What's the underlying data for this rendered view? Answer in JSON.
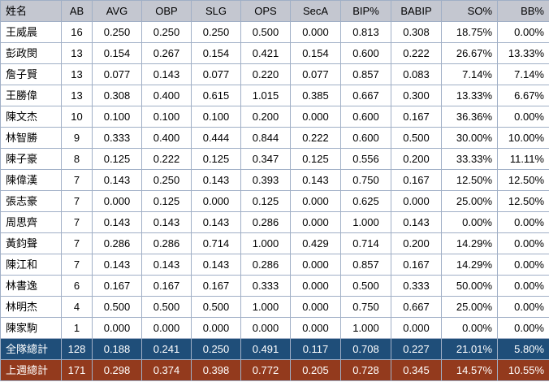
{
  "table": {
    "columns": [
      "姓名",
      "AB",
      "AVG",
      "OBP",
      "SLG",
      "OPS",
      "SecA",
      "BIP%",
      "BABIP",
      "SO%",
      "BB%"
    ],
    "rows": [
      [
        "王威晨",
        "16",
        "0.250",
        "0.250",
        "0.250",
        "0.500",
        "0.000",
        "0.813",
        "0.308",
        "18.75%",
        "0.00%"
      ],
      [
        "彭政閔",
        "13",
        "0.154",
        "0.267",
        "0.154",
        "0.421",
        "0.154",
        "0.600",
        "0.222",
        "26.67%",
        "13.33%"
      ],
      [
        "詹子賢",
        "13",
        "0.077",
        "0.143",
        "0.077",
        "0.220",
        "0.077",
        "0.857",
        "0.083",
        "7.14%",
        "7.14%"
      ],
      [
        "王勝偉",
        "13",
        "0.308",
        "0.400",
        "0.615",
        "1.015",
        "0.385",
        "0.667",
        "0.300",
        "13.33%",
        "6.67%"
      ],
      [
        "陳文杰",
        "10",
        "0.100",
        "0.100",
        "0.100",
        "0.200",
        "0.000",
        "0.600",
        "0.167",
        "36.36%",
        "0.00%"
      ],
      [
        "林智勝",
        "9",
        "0.333",
        "0.400",
        "0.444",
        "0.844",
        "0.222",
        "0.600",
        "0.500",
        "30.00%",
        "10.00%"
      ],
      [
        "陳子豪",
        "8",
        "0.125",
        "0.222",
        "0.125",
        "0.347",
        "0.125",
        "0.556",
        "0.200",
        "33.33%",
        "11.11%"
      ],
      [
        "陳偉漢",
        "7",
        "0.143",
        "0.250",
        "0.143",
        "0.393",
        "0.143",
        "0.750",
        "0.167",
        "12.50%",
        "12.50%"
      ],
      [
        "張志豪",
        "7",
        "0.000",
        "0.125",
        "0.000",
        "0.125",
        "0.000",
        "0.625",
        "0.000",
        "25.00%",
        "12.50%"
      ],
      [
        "周思齊",
        "7",
        "0.143",
        "0.143",
        "0.143",
        "0.286",
        "0.000",
        "1.000",
        "0.143",
        "0.00%",
        "0.00%"
      ],
      [
        "黃鈞聲",
        "7",
        "0.286",
        "0.286",
        "0.714",
        "1.000",
        "0.429",
        "0.714",
        "0.200",
        "14.29%",
        "0.00%"
      ],
      [
        "陳江和",
        "7",
        "0.143",
        "0.143",
        "0.143",
        "0.286",
        "0.000",
        "0.857",
        "0.167",
        "14.29%",
        "0.00%"
      ],
      [
        "林書逸",
        "6",
        "0.167",
        "0.167",
        "0.167",
        "0.333",
        "0.000",
        "0.500",
        "0.333",
        "50.00%",
        "0.00%"
      ],
      [
        "林明杰",
        "4",
        "0.500",
        "0.500",
        "0.500",
        "1.000",
        "0.000",
        "0.750",
        "0.667",
        "25.00%",
        "0.00%"
      ],
      [
        "陳家駒",
        "1",
        "0.000",
        "0.000",
        "0.000",
        "0.000",
        "0.000",
        "1.000",
        "0.000",
        "0.00%",
        "0.00%"
      ]
    ],
    "totals": [
      {
        "id": "team-total-row",
        "label": "全隊總計",
        "values": [
          "128",
          "0.188",
          "0.241",
          "0.250",
          "0.491",
          "0.117",
          "0.708",
          "0.227",
          "21.01%",
          "5.80%"
        ],
        "bg": "#1F4E79"
      },
      {
        "id": "week-total-row",
        "label": "上週總計",
        "values": [
          "171",
          "0.298",
          "0.374",
          "0.398",
          "0.772",
          "0.205",
          "0.728",
          "0.345",
          "14.57%",
          "10.55%"
        ],
        "bg": "#933A1D"
      }
    ]
  },
  "colors": {
    "header_bg": "#C4C7D0",
    "grid": "#A0AFC6",
    "body_bg": "#FFFFFF",
    "text": "#000000",
    "total_text": "#FFFFFF",
    "team_total_bg": "#1F4E79",
    "week_total_bg": "#933A1D"
  }
}
